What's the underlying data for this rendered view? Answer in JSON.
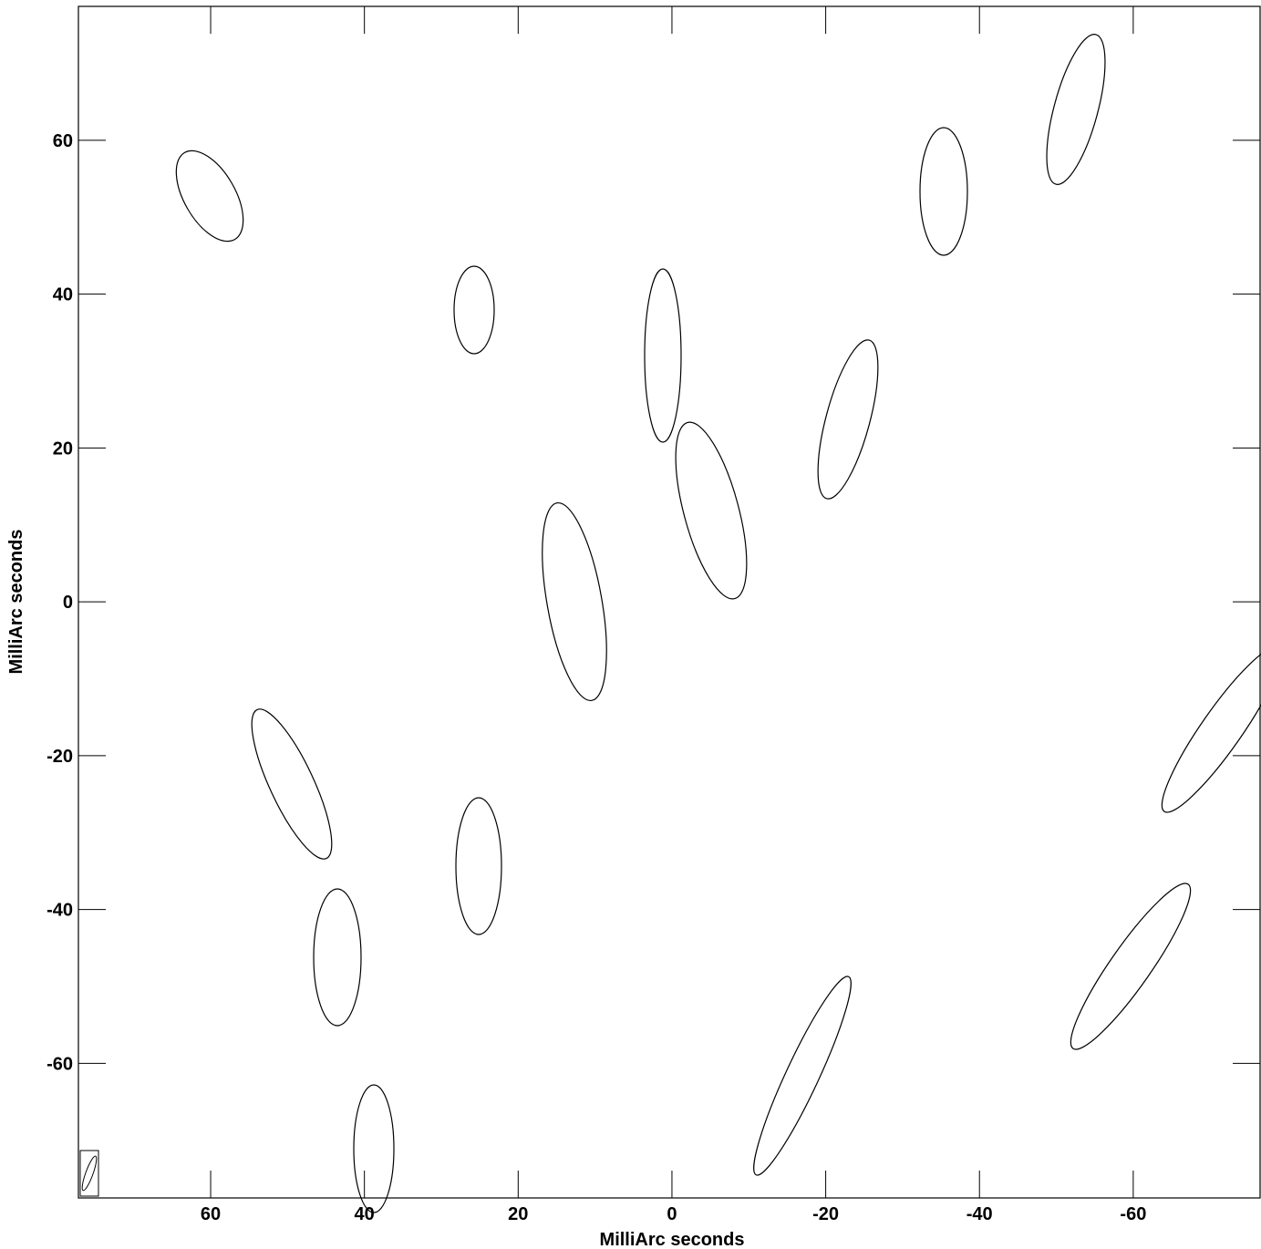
{
  "chart_data": {
    "type": "contour",
    "xlabel": "MilliArc seconds",
    "ylabel": "MilliArc seconds",
    "xlim": [
      77.2,
      -76.5
    ],
    "ylim": [
      -77.5,
      77.4
    ],
    "xticks": [
      60,
      40,
      20,
      0,
      -20,
      -40,
      -60
    ],
    "yticks": [
      -60,
      -40,
      -20,
      0,
      20,
      40,
      60
    ],
    "color": "#000000"
  }
}
